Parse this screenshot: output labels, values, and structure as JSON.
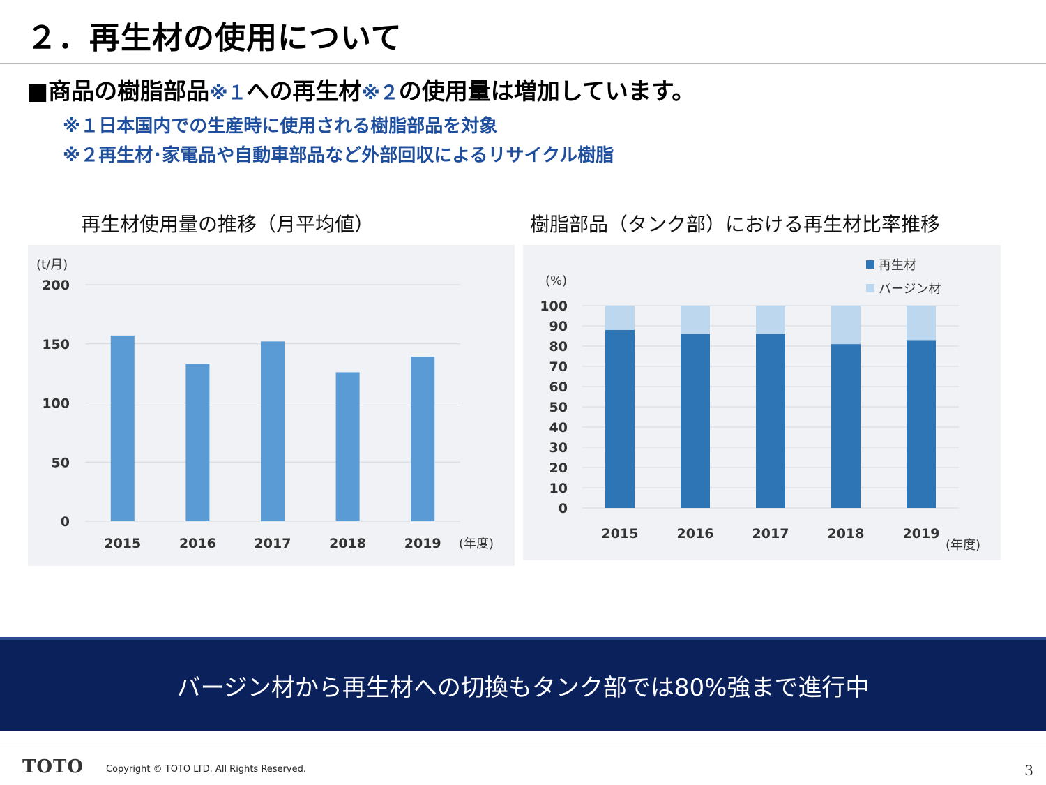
{
  "header": {
    "title": "２．再生材の使用について",
    "headline_lead": "■商品の樹脂部品",
    "headline_note1": "※１",
    "headline_mid": "への再生材",
    "headline_note2": "※２",
    "headline_tail": "の使用量は増加しています。",
    "note1": "※１日本国内での生産時に使用される樹脂部品を対象",
    "note2": "※２再生材･家電品や自動車部品など外部回収によるリサイクル樹脂"
  },
  "colors": {
    "bar_single": "#5b9bd5",
    "recycled": "#2e75b6",
    "virgin": "#bdd7ee",
    "banner": "#0b215c",
    "note": "#1f4e9c"
  },
  "chart_data": [
    {
      "type": "bar",
      "title": "再生材使用量の推移（月平均値）",
      "ylabel": "(t/月)",
      "xlabel": "(年度)",
      "categories": [
        "2015",
        "2016",
        "2017",
        "2018",
        "2019"
      ],
      "values": [
        157,
        133,
        152,
        126,
        139
      ],
      "ylim": [
        0,
        200
      ],
      "yticks": [
        0,
        50,
        100,
        150,
        200
      ],
      "grid": true
    },
    {
      "type": "bar",
      "stacked": true,
      "title": "樹脂部品（タンク部）における再生材比率推移",
      "ylabel": "(%)",
      "xlabel": "(年度)",
      "categories": [
        "2015",
        "2016",
        "2017",
        "2018",
        "2019"
      ],
      "series": [
        {
          "name": "再生材",
          "values": [
            88,
            86,
            86,
            81,
            83
          ]
        },
        {
          "name": "バージン材",
          "values": [
            12,
            14,
            14,
            19,
            17
          ]
        }
      ],
      "ylim": [
        0,
        100
      ],
      "yticks": [
        0,
        10,
        20,
        30,
        40,
        50,
        60,
        70,
        80,
        90,
        100
      ],
      "grid": true,
      "legend": "top-right"
    }
  ],
  "banner": {
    "text": "バージン材から再生材への切換もタンク部では80%強まで進行中"
  },
  "footer": {
    "logo": "TOTO",
    "copyright": "Copyright © TOTO LTD. All Rights Reserved.",
    "page": "3"
  }
}
